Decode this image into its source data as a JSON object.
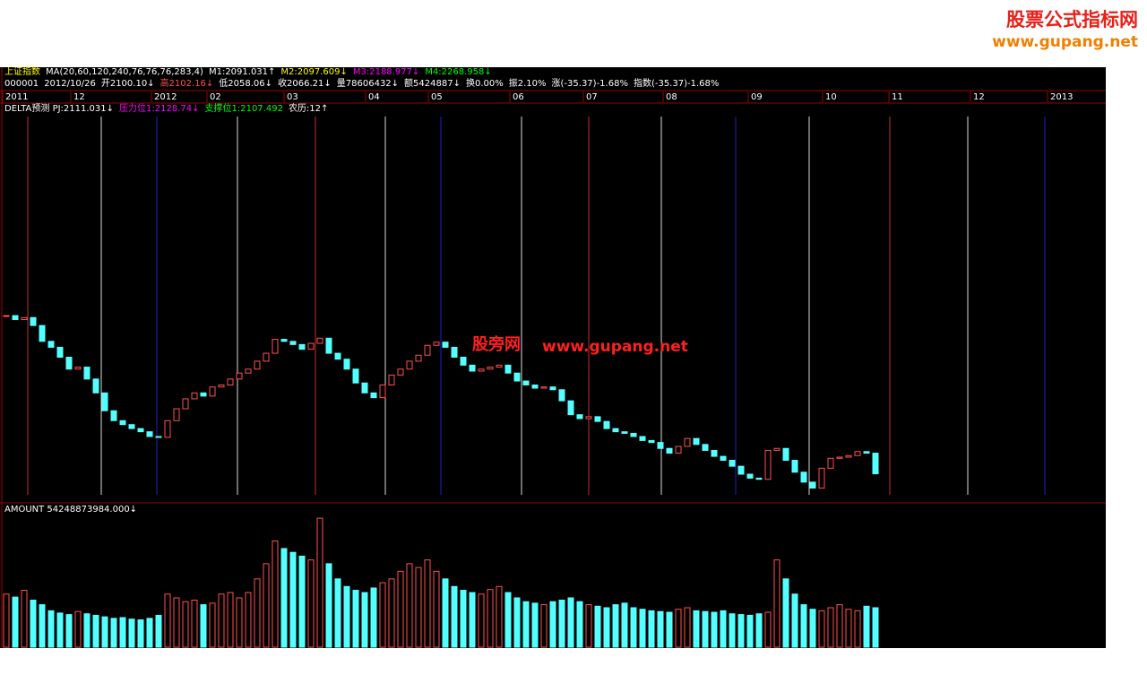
{
  "watermark": {
    "title": "股票公式指标网",
    "url": "www.gupang.net",
    "center_name": "股旁网",
    "center_url": "www.gupang.net"
  },
  "header": {
    "row1": [
      {
        "text": "上证指数",
        "color": "#ffff00"
      },
      {
        "text": "MA(20,60,120,240,76,76,76,283,4)",
        "color": "#ffffff"
      },
      {
        "text": "M1:2091.031↑",
        "color": "#ffffff"
      },
      {
        "text": "M2:2097.609↓",
        "color": "#ffff00"
      },
      {
        "text": "M3:2188.977↓",
        "color": "#ff00ff"
      },
      {
        "text": "M4:2268.958↓",
        "color": "#00ff00"
      }
    ],
    "row2": [
      {
        "text": "000001",
        "color": "#ffffff"
      },
      {
        "text": "2012/10/26",
        "color": "#ffffff"
      },
      {
        "text": "开2100.10↓",
        "color": "#ffffff"
      },
      {
        "text": "高2102.16↓",
        "color": "#ff5050"
      },
      {
        "text": "低2058.06↓",
        "color": "#ffffff"
      },
      {
        "text": "收2066.21↓",
        "color": "#ffffff"
      },
      {
        "text": "量78606432↓",
        "color": "#ffffff"
      },
      {
        "text": "额5424887↓",
        "color": "#ffffff"
      },
      {
        "text": "换0.00%",
        "color": "#ffffff"
      },
      {
        "text": "振2.10%",
        "color": "#ffffff"
      },
      {
        "text": "涨(-35.37)-1.68%",
        "color": "#ffffff"
      },
      {
        "text": "指数(-35.37)-1.68%",
        "color": "#ffffff"
      }
    ],
    "row3": [
      {
        "text": "DELTA预测 PJ:2111.031↓",
        "color": "#ffffff"
      },
      {
        "text": "压力位1:2128.74↓",
        "color": "#ff00ff"
      },
      {
        "text": "支撑位1:2107.492",
        "color": "#00ff00"
      },
      {
        "text": "农历:12↑",
        "color": "#ffffff"
      }
    ]
  },
  "months": [
    "2011",
    "12",
    "2012",
    "02",
    "03",
    "04",
    "05",
    "06",
    "07",
    "08",
    "09",
    "10",
    "11",
    "12",
    "2013"
  ],
  "volume_label": "AMOUNT 54248873984.000↓",
  "chart_data": {
    "type": "candlestick",
    "up_color": "#ff5050",
    "down_color": "#54ffff",
    "ylim": [
      2013,
      2967
    ],
    "y2lim": [
      0,
      1890
    ],
    "values": [
      2465,
      2455,
      2460,
      2440,
      2400,
      2385,
      2360,
      2330,
      2335,
      2305,
      2270,
      2225,
      2200,
      2190,
      2180,
      2172,
      2160,
      2158,
      2200,
      2230,
      2255,
      2270,
      2262,
      2285,
      2290,
      2305,
      2320,
      2330,
      2350,
      2370,
      2405,
      2400,
      2392,
      2380,
      2395,
      2408,
      2370,
      2355,
      2330,
      2295,
      2270,
      2258,
      2290,
      2315,
      2330,
      2350,
      2365,
      2390,
      2398,
      2385,
      2360,
      2340,
      2325,
      2330,
      2335,
      2340,
      2320,
      2300,
      2290,
      2282,
      2285,
      2278,
      2250,
      2215,
      2205,
      2210,
      2198,
      2180,
      2172,
      2168,
      2160,
      2150,
      2145,
      2130,
      2118,
      2135,
      2155,
      2140,
      2125,
      2110,
      2100,
      2085,
      2065,
      2055,
      2052,
      2125,
      2130,
      2100,
      2070,
      2045,
      2030,
      2080,
      2105,
      2108,
      2112,
      2122,
      2118,
      2066
    ],
    "volume": [
      700,
      660,
      750,
      620,
      560,
      480,
      450,
      430,
      470,
      440,
      420,
      400,
      380,
      390,
      370,
      360,
      380,
      420,
      700,
      650,
      600,
      620,
      560,
      580,
      700,
      720,
      650,
      720,
      900,
      1100,
      1400,
      1300,
      1250,
      1200,
      1150,
      1700,
      1100,
      900,
      800,
      750,
      720,
      780,
      850,
      900,
      1000,
      1100,
      1050,
      1150,
      1000,
      900,
      800,
      750,
      720,
      700,
      760,
      800,
      720,
      650,
      600,
      580,
      560,
      600,
      620,
      650,
      600,
      560,
      540,
      520,
      560,
      580,
      520,
      500,
      480,
      470,
      460,
      500,
      520,
      480,
      470,
      460,
      480,
      440,
      430,
      420,
      440,
      460,
      1150,
      900,
      700,
      560,
      500,
      480,
      520,
      560,
      500,
      480,
      540,
      520
    ]
  }
}
